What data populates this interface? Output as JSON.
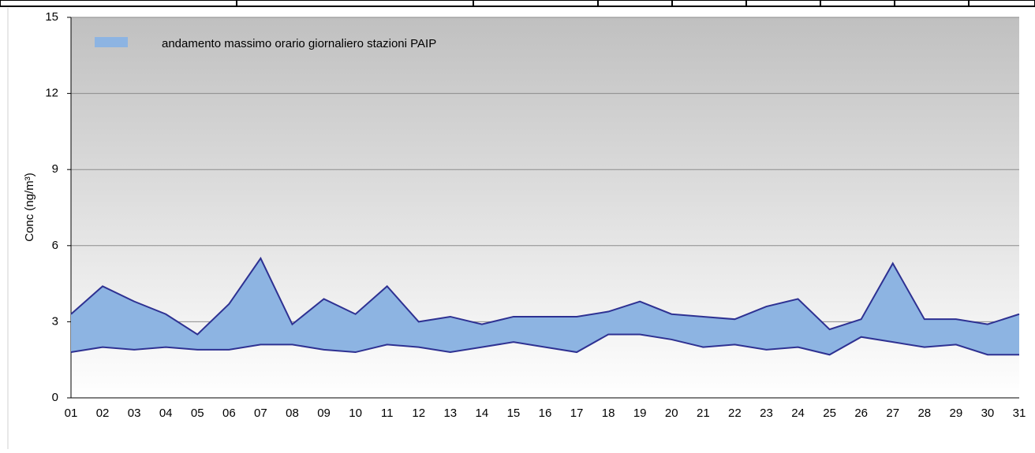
{
  "chart_data": {
    "type": "area-band",
    "ylabel": "Conc (ng/m³)",
    "categories": [
      "01",
      "02",
      "03",
      "04",
      "05",
      "06",
      "07",
      "08",
      "09",
      "10",
      "11",
      "12",
      "13",
      "14",
      "15",
      "16",
      "17",
      "18",
      "19",
      "20",
      "21",
      "22",
      "23",
      "24",
      "25",
      "26",
      "27",
      "28",
      "29",
      "30",
      "31"
    ],
    "series": [
      {
        "name": "andamento massimo orario giornaliero stazioni PAIP",
        "color": "#8db4e2",
        "line_color": "#2e3192",
        "values": [
          3.3,
          4.4,
          3.8,
          3.3,
          2.5,
          3.7,
          5.5,
          2.9,
          3.9,
          3.3,
          4.4,
          3.0,
          3.2,
          2.9,
          3.2,
          3.2,
          3.2,
          3.4,
          3.8,
          3.3,
          3.2,
          3.1,
          3.6,
          3.9,
          2.7,
          3.1,
          5.3,
          3.1,
          3.1,
          2.9,
          3.3
        ],
        "lower": [
          1.8,
          2.0,
          1.9,
          2.0,
          1.9,
          1.9,
          2.1,
          2.1,
          1.9,
          1.8,
          2.1,
          2.0,
          1.8,
          2.0,
          2.2,
          2.0,
          1.8,
          2.5,
          2.5,
          2.3,
          2.0,
          2.1,
          1.9,
          2.0,
          1.7,
          2.4,
          2.2,
          2.0,
          2.1,
          1.7,
          1.7
        ]
      }
    ],
    "ylim": [
      0,
      15
    ],
    "yticks": [
      0,
      3,
      6,
      9,
      12,
      15
    ],
    "grid": true
  }
}
